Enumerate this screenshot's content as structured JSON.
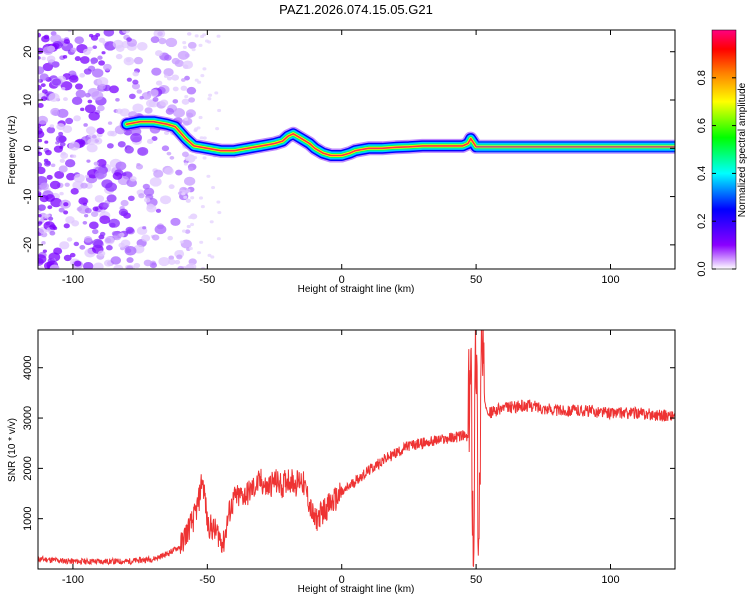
{
  "title": "PAZ1.2026.074.15.05.G21",
  "chart_data": [
    {
      "type": "heatmap",
      "xlabel": "Height of straight line (km)",
      "ylabel": "Frequency (Hz)",
      "xlim": [
        -113,
        124
      ],
      "ylim": [
        -25,
        24.5
      ],
      "x_ticks": [
        -100,
        -50,
        0,
        50,
        100
      ],
      "y_ticks": [
        -20,
        -10,
        0,
        10,
        20
      ],
      "colorbar": {
        "label": "Normalized spectral amplitude",
        "range": [
          0.0,
          1.0
        ],
        "ticks": [
          0.0,
          0.2,
          0.4,
          0.6,
          0.8
        ],
        "colors": [
          "#ffffff",
          "#8a00ff",
          "#0000ff",
          "#00ffff",
          "#00ff00",
          "#ffff00",
          "#ff8000",
          "#ff0000",
          "#ff0080"
        ]
      },
      "ridge": {
        "x": [
          -80,
          -75,
          -70,
          -65,
          -62,
          -58,
          -55,
          -50,
          -45,
          -40,
          -35,
          -30,
          -25,
          -22,
          -20,
          -18,
          -15,
          -12,
          -10,
          -7,
          -4,
          0,
          3,
          5,
          10,
          15,
          20,
          25,
          30,
          35,
          40,
          45,
          47,
          48,
          50,
          60,
          70,
          80,
          90,
          100,
          110,
          124
        ],
        "freq": [
          5,
          5.5,
          5.5,
          5,
          4.5,
          2,
          0.5,
          0,
          -0.5,
          -0.5,
          0,
          0.5,
          1,
          1.5,
          2.5,
          3,
          2,
          1,
          0,
          -1,
          -1.5,
          -1.5,
          -1,
          -0.5,
          0,
          0,
          0.2,
          0.3,
          0.5,
          0.5,
          0.5,
          0.5,
          1,
          2,
          0.3,
          0.3,
          0.3,
          0.3,
          0.3,
          0.3,
          0.3,
          0.3
        ]
      }
    },
    {
      "type": "line",
      "xlabel": "Height of straight line (km)",
      "ylabel": "SNR (10 * v/v)",
      "xlim": [
        -113,
        124
      ],
      "ylim": [
        0,
        4750
      ],
      "x_ticks": [
        -100,
        -50,
        0,
        50,
        100
      ],
      "y_ticks": [
        1000,
        2000,
        3000,
        4000
      ],
      "series": [
        {
          "color": "#ee3333",
          "x": [
            -113,
            -100,
            -90,
            -80,
            -70,
            -65,
            -60,
            -58,
            -55,
            -53,
            -52,
            -51,
            -50,
            -48,
            -46,
            -44,
            -42,
            -40,
            -35,
            -30,
            -28,
            -25,
            -22,
            -20,
            -17,
            -15,
            -13,
            -11,
            -10,
            -7,
            -4,
            0,
            5,
            10,
            15,
            20,
            25,
            30,
            35,
            40,
            45,
            47,
            48,
            49,
            50,
            51,
            52,
            53,
            55,
            60,
            70,
            80,
            90,
            100,
            110,
            120,
            124
          ],
          "y": [
            200,
            150,
            150,
            150,
            200,
            300,
            450,
            700,
            1000,
            1400,
            1800,
            1500,
            900,
            800,
            700,
            500,
            1100,
            1400,
            1500,
            1750,
            1600,
            1750,
            1650,
            1800,
            1700,
            1800,
            1500,
            1100,
            950,
            1150,
            1300,
            1500,
            1750,
            1950,
            2150,
            2300,
            2450,
            2500,
            2550,
            2600,
            2650,
            2600,
            4000,
            600,
            4750,
            300,
            4400,
            3400,
            3100,
            3200,
            3250,
            3150,
            3150,
            3100,
            3100,
            3050,
            3050
          ]
        }
      ]
    }
  ]
}
